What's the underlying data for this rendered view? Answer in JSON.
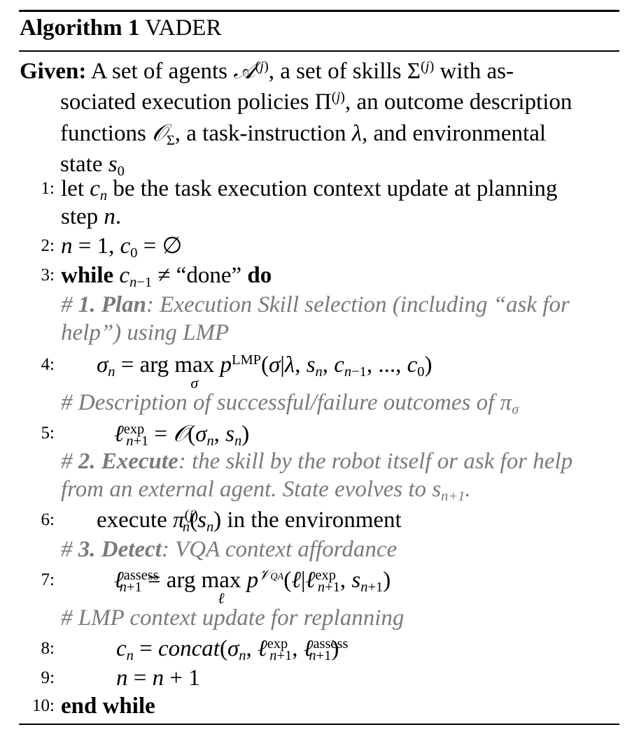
{
  "algorithm": {
    "label": "Algorithm 1",
    "name": "VADER"
  },
  "given": {
    "keyword": "Given:",
    "text_a": "A set of agents",
    "text_b": ", a set of skills",
    "text_c": "with as-",
    "text_d": "sociated execution policies",
    "text_e": ", an outcome description",
    "text_f": "functions",
    "text_g": ", a task-instruction",
    "text_h": ", and environmental",
    "text_i": "state"
  },
  "lines": {
    "n1": "1:",
    "n2": "2:",
    "n3": "3:",
    "n4": "4:",
    "n5": "5:",
    "n6": "6:",
    "n7": "7:",
    "n8": "8:",
    "n9": "9:",
    "n10": "10:",
    "l1a": "let",
    "l1b": "be the task execution context update at planning",
    "l1c": "step",
    "l3_while": "while",
    "l3_done": "“done”",
    "l3_do": "do",
    "c1_head": "1. Plan",
    "c1_text": ": Execution Skill selection (including “ask for",
    "c1_text2": "help”) using LMP",
    "c2_text": "Description of successful/failure outcomes of",
    "c3_head": "2. Execute",
    "c3_text": ": the skill by the robot itself or ask for help",
    "c3_text2": "from an external agent. State evolves to",
    "l6a": "execute",
    "l6b": "in the environment",
    "c4_head": "3. Detect",
    "c4_text": ": VQA context affordance",
    "c5_text": "LMP context update for replanning",
    "l10": "end while"
  }
}
